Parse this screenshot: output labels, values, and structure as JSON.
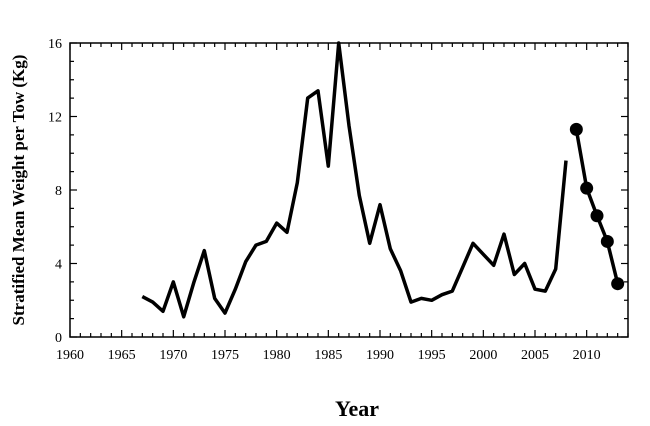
{
  "chart_data": {
    "type": "line",
    "title": "",
    "xlabel": "Year",
    "ylabel": "Stratified Mean Weight per Tow (Kg)",
    "xlim": [
      1960,
      2014
    ],
    "ylim": [
      0,
      16
    ],
    "x_ticks": [
      1960,
      1965,
      1970,
      1975,
      1980,
      1985,
      1990,
      1995,
      2000,
      2005,
      2010
    ],
    "y_ticks": [
      0,
      4,
      8,
      12,
      16
    ],
    "grid": false,
    "legend": "none",
    "series": [
      {
        "x": [
          1967,
          1968,
          1969,
          1970,
          1971,
          1972,
          1973,
          1974,
          1975,
          1976,
          1977,
          1978,
          1979,
          1980,
          1981,
          1982,
          1983,
          1984,
          1985,
          1986,
          1987,
          1988,
          1989,
          1990,
          1991,
          1992,
          1993,
          1994,
          1995,
          1996,
          1997,
          1998,
          1999,
          2000,
          2001,
          2002,
          2003,
          2004,
          2005,
          2006,
          2007,
          2008
        ],
        "values": [
          2.2,
          1.9,
          1.4,
          3.0,
          1.1,
          3.0,
          4.7,
          2.1,
          1.3,
          2.6,
          4.1,
          5.0,
          5.2,
          6.2,
          5.7,
          8.4,
          13.0,
          13.4,
          9.3,
          16.0,
          11.5,
          7.7,
          5.1,
          7.2,
          4.8,
          3.6,
          1.9,
          2.1,
          2.0,
          2.3,
          2.5,
          3.8,
          5.1,
          4.5,
          3.9,
          5.6,
          3.4,
          4.0,
          2.6,
          2.5,
          3.7,
          9.6
        ],
        "markers": false
      },
      {
        "x": [
          2009,
          2010,
          2011,
          2012,
          2013
        ],
        "values": [
          11.3,
          8.1,
          6.6,
          5.2,
          2.9
        ],
        "markers": true
      }
    ]
  }
}
